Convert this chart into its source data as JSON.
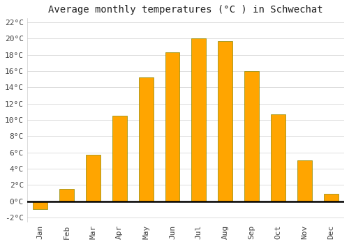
{
  "title": "Average monthly temperatures (°C ) in Schwechat",
  "months": [
    "Jan",
    "Feb",
    "Mar",
    "Apr",
    "May",
    "Jun",
    "Jul",
    "Aug",
    "Sep",
    "Oct",
    "Nov",
    "Dec"
  ],
  "values": [
    -1.0,
    1.5,
    5.7,
    10.5,
    15.2,
    18.3,
    20.0,
    19.7,
    16.0,
    10.7,
    5.0,
    0.9
  ],
  "bar_color": "#FFA500",
  "bar_edge_color": "#888800",
  "background_color": "#ffffff",
  "plot_bg_color": "#ffffff",
  "ylim": [
    -2.5,
    22.5
  ],
  "yticks": [
    0,
    2,
    4,
    6,
    8,
    10,
    12,
    14,
    16,
    18,
    20,
    22
  ],
  "ytick_labels": [
    "0°C",
    "2°C",
    "4°C",
    "6°C",
    "8°C",
    "10°C",
    "12°C",
    "14°C",
    "16°C",
    "18°C",
    "20°C",
    "22°C"
  ],
  "extra_ytick": -2,
  "extra_ytick_label": "-2°C",
  "grid_color": "#dddddd",
  "title_fontsize": 10,
  "tick_fontsize": 8,
  "bar_width": 0.55
}
